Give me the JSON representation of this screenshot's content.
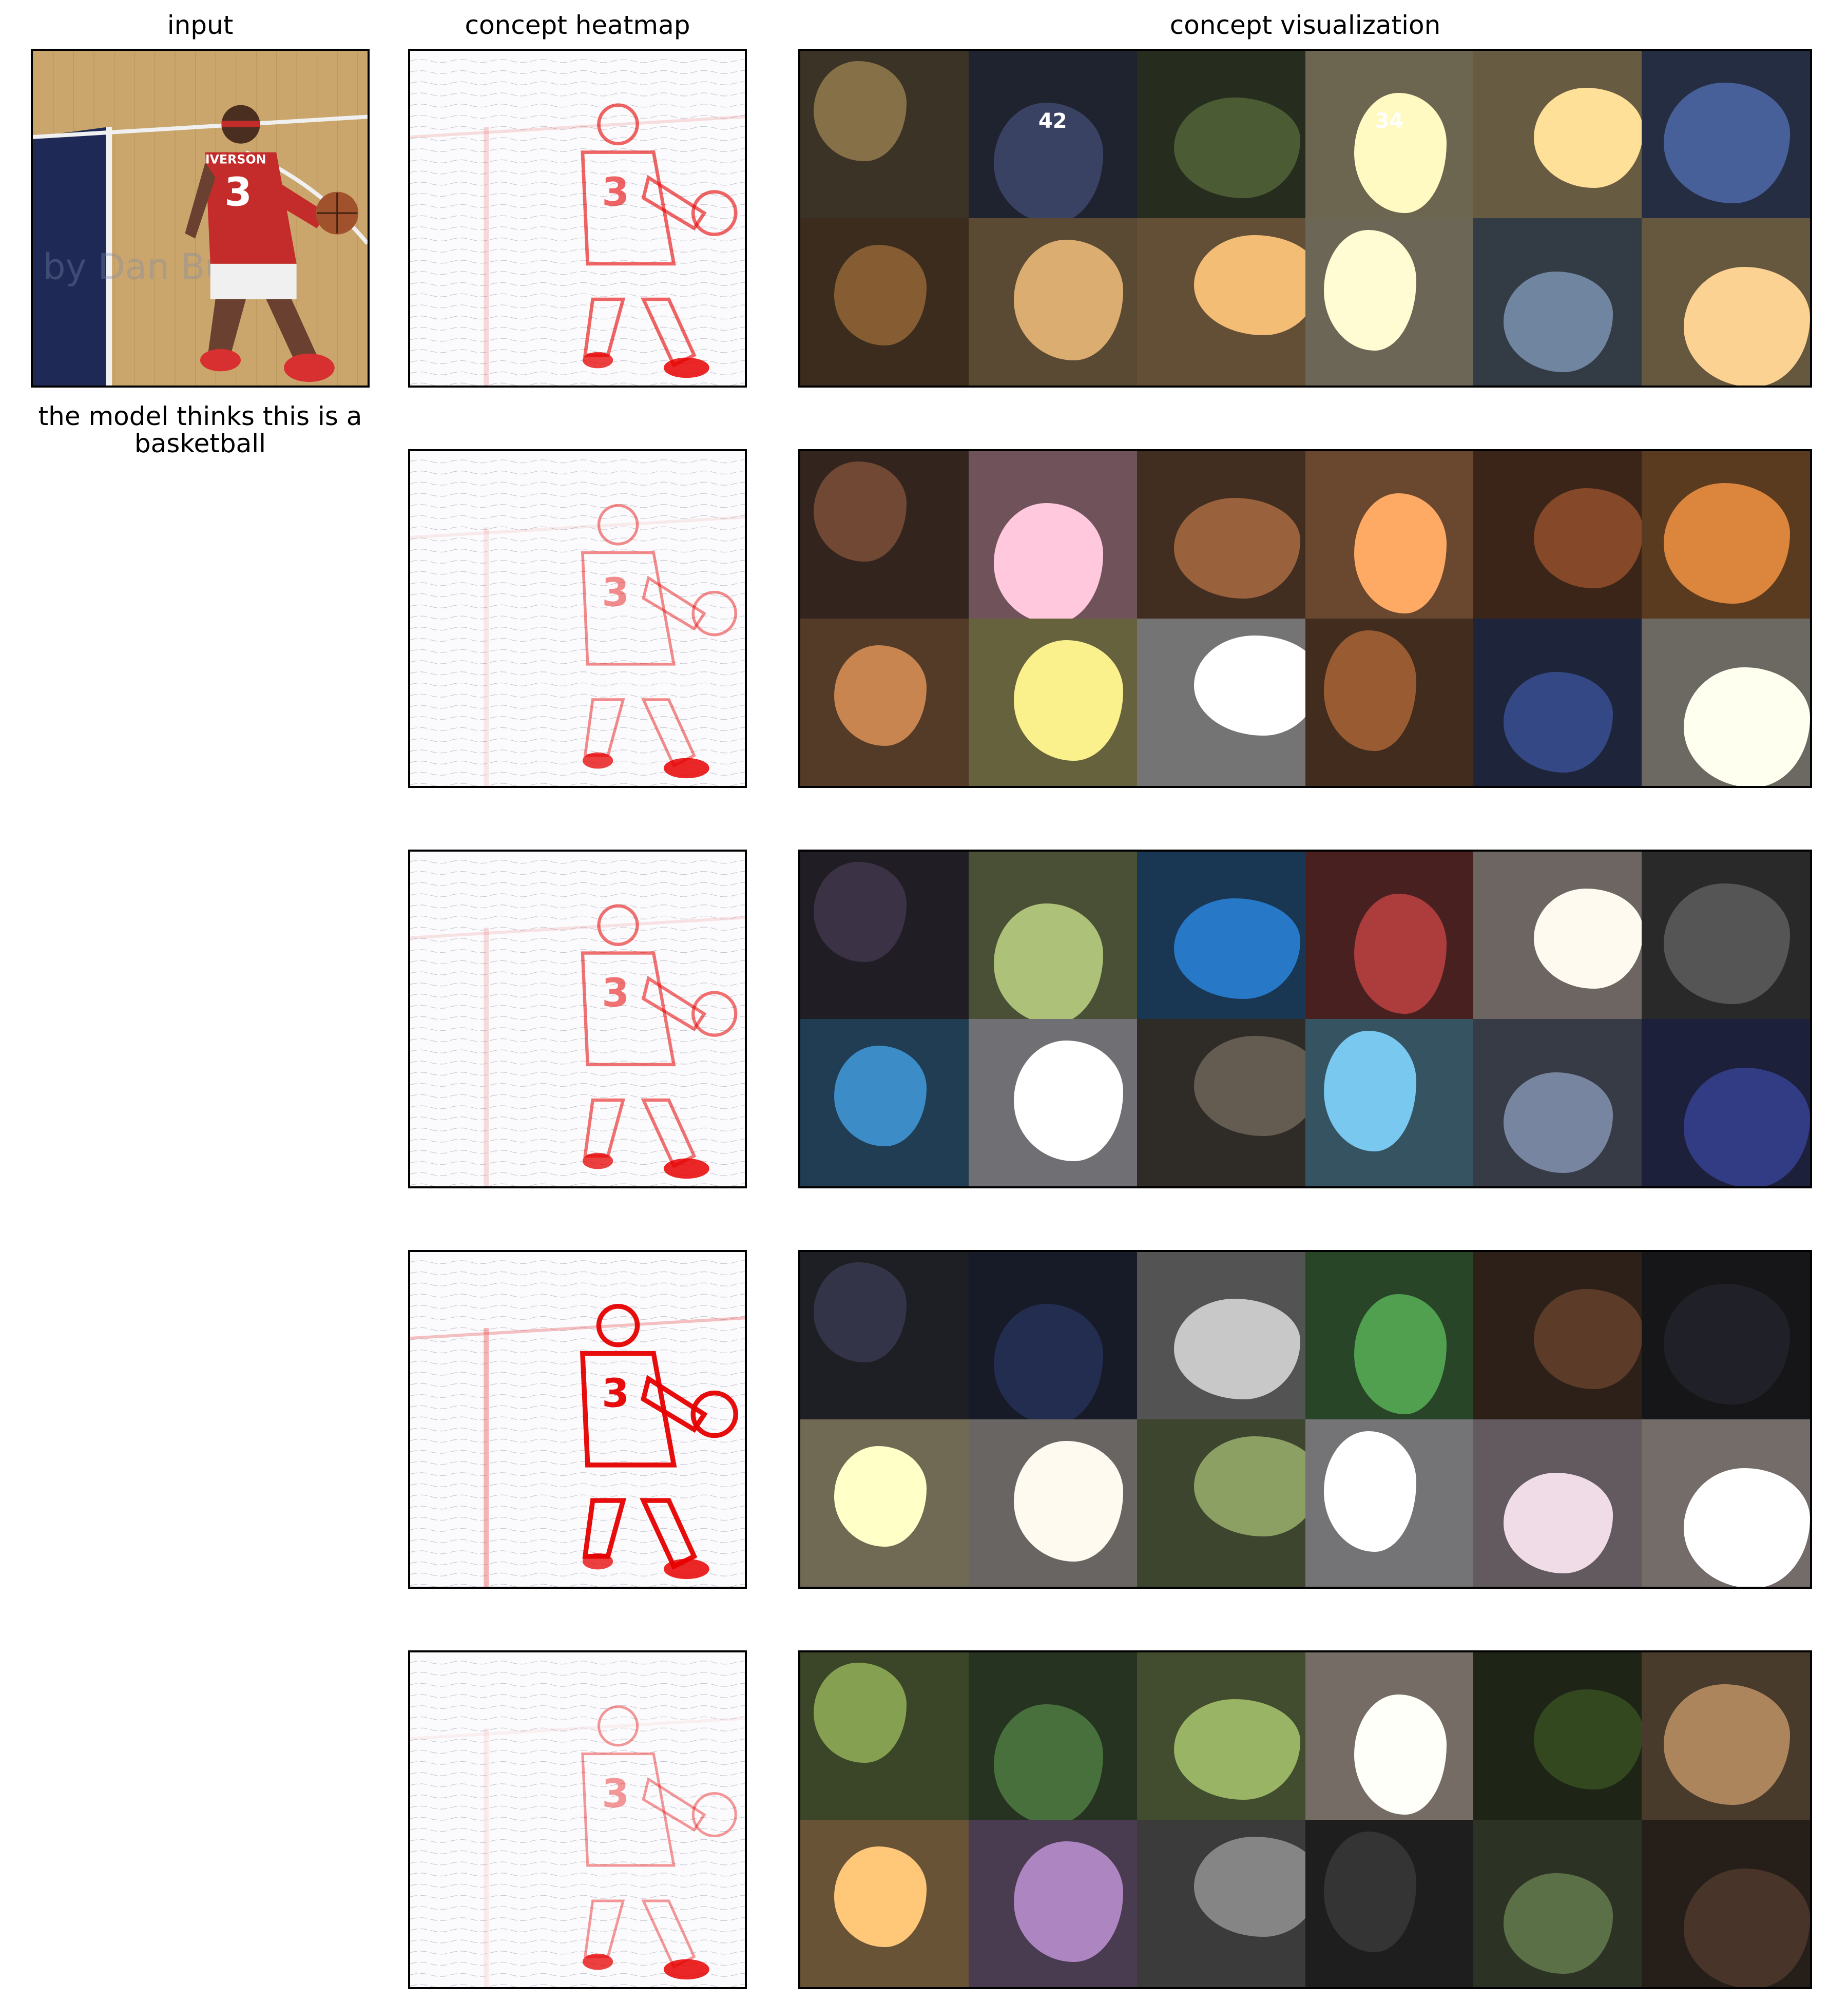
{
  "headers": {
    "input": "input",
    "heatmap": "concept heatmap",
    "visualization": "concept visualization"
  },
  "input_image": {
    "jersey_name": "IVERSON",
    "jersey_number": "3",
    "watermark": "by Dan Burz...",
    "colors": {
      "floor": "#c9a46a",
      "paint": "#1e2a55",
      "jersey": "#c42b2b"
    }
  },
  "prediction_caption": "the model thinks this is a basketball",
  "heatmap_number": "3",
  "concepts": [
    {
      "heat_intensity": 0.35,
      "tiles": [
        "#6b5a3a",
        "#2e3550",
        "#3c4a2a",
        "#d8c89a",
        "#cdb37a",
        "#3a4d7a",
        "#6b4a28",
        "#b08a5a",
        "#c2975e",
        "#d7c9a8",
        "#5a6a80",
        "#c9a874"
      ],
      "tile_words": [
        "",
        "42",
        "",
        "34",
        "",
        "",
        "",
        "",
        "",
        "",
        "",
        ""
      ]
    },
    {
      "heat_intensity": 0.2,
      "tiles": [
        "#5a3a2a",
        "#e0a0b0",
        "#7a4e30",
        "#d08850",
        "#6a3a20",
        "#b06a30",
        "#a06a40",
        "#c8c070",
        "#e8e8e8",
        "#7a4a28",
        "#2a3a6a",
        "#d8d0c0"
      ]
    },
    {
      "heat_intensity": 0.3,
      "tiles": [
        "#302838",
        "#8a9a60",
        "#2060a0",
        "#8a3030",
        "#d8c8c0",
        "#444444",
        "#3070a0",
        "#e0e0e8",
        "#504a40",
        "#60a0c0",
        "#606a80",
        "#28306a"
      ]
    },
    {
      "heat_intensity": 0.7,
      "tiles": [
        "#2a2a3a",
        "#1c2440",
        "#a0a0a0",
        "#408040",
        "#4a3020",
        "#1a1a20",
        "#e0d0a0",
        "#d0c8c0",
        "#708050",
        "#e8e8f0",
        "#c0b0b8",
        "#e8d8d0"
      ]
    },
    {
      "heat_intensity": 0.15,
      "tiles": [
        "#6a8040",
        "#3a5a30",
        "#7a9050",
        "#e8d8c8",
        "#2a3a1a",
        "#8a6a4a",
        "#d0a060",
        "#8a6a9a",
        "#6a6a6a",
        "#2a2a2a",
        "#4a5a3a",
        "#3a2a20"
      ]
    }
  ]
}
